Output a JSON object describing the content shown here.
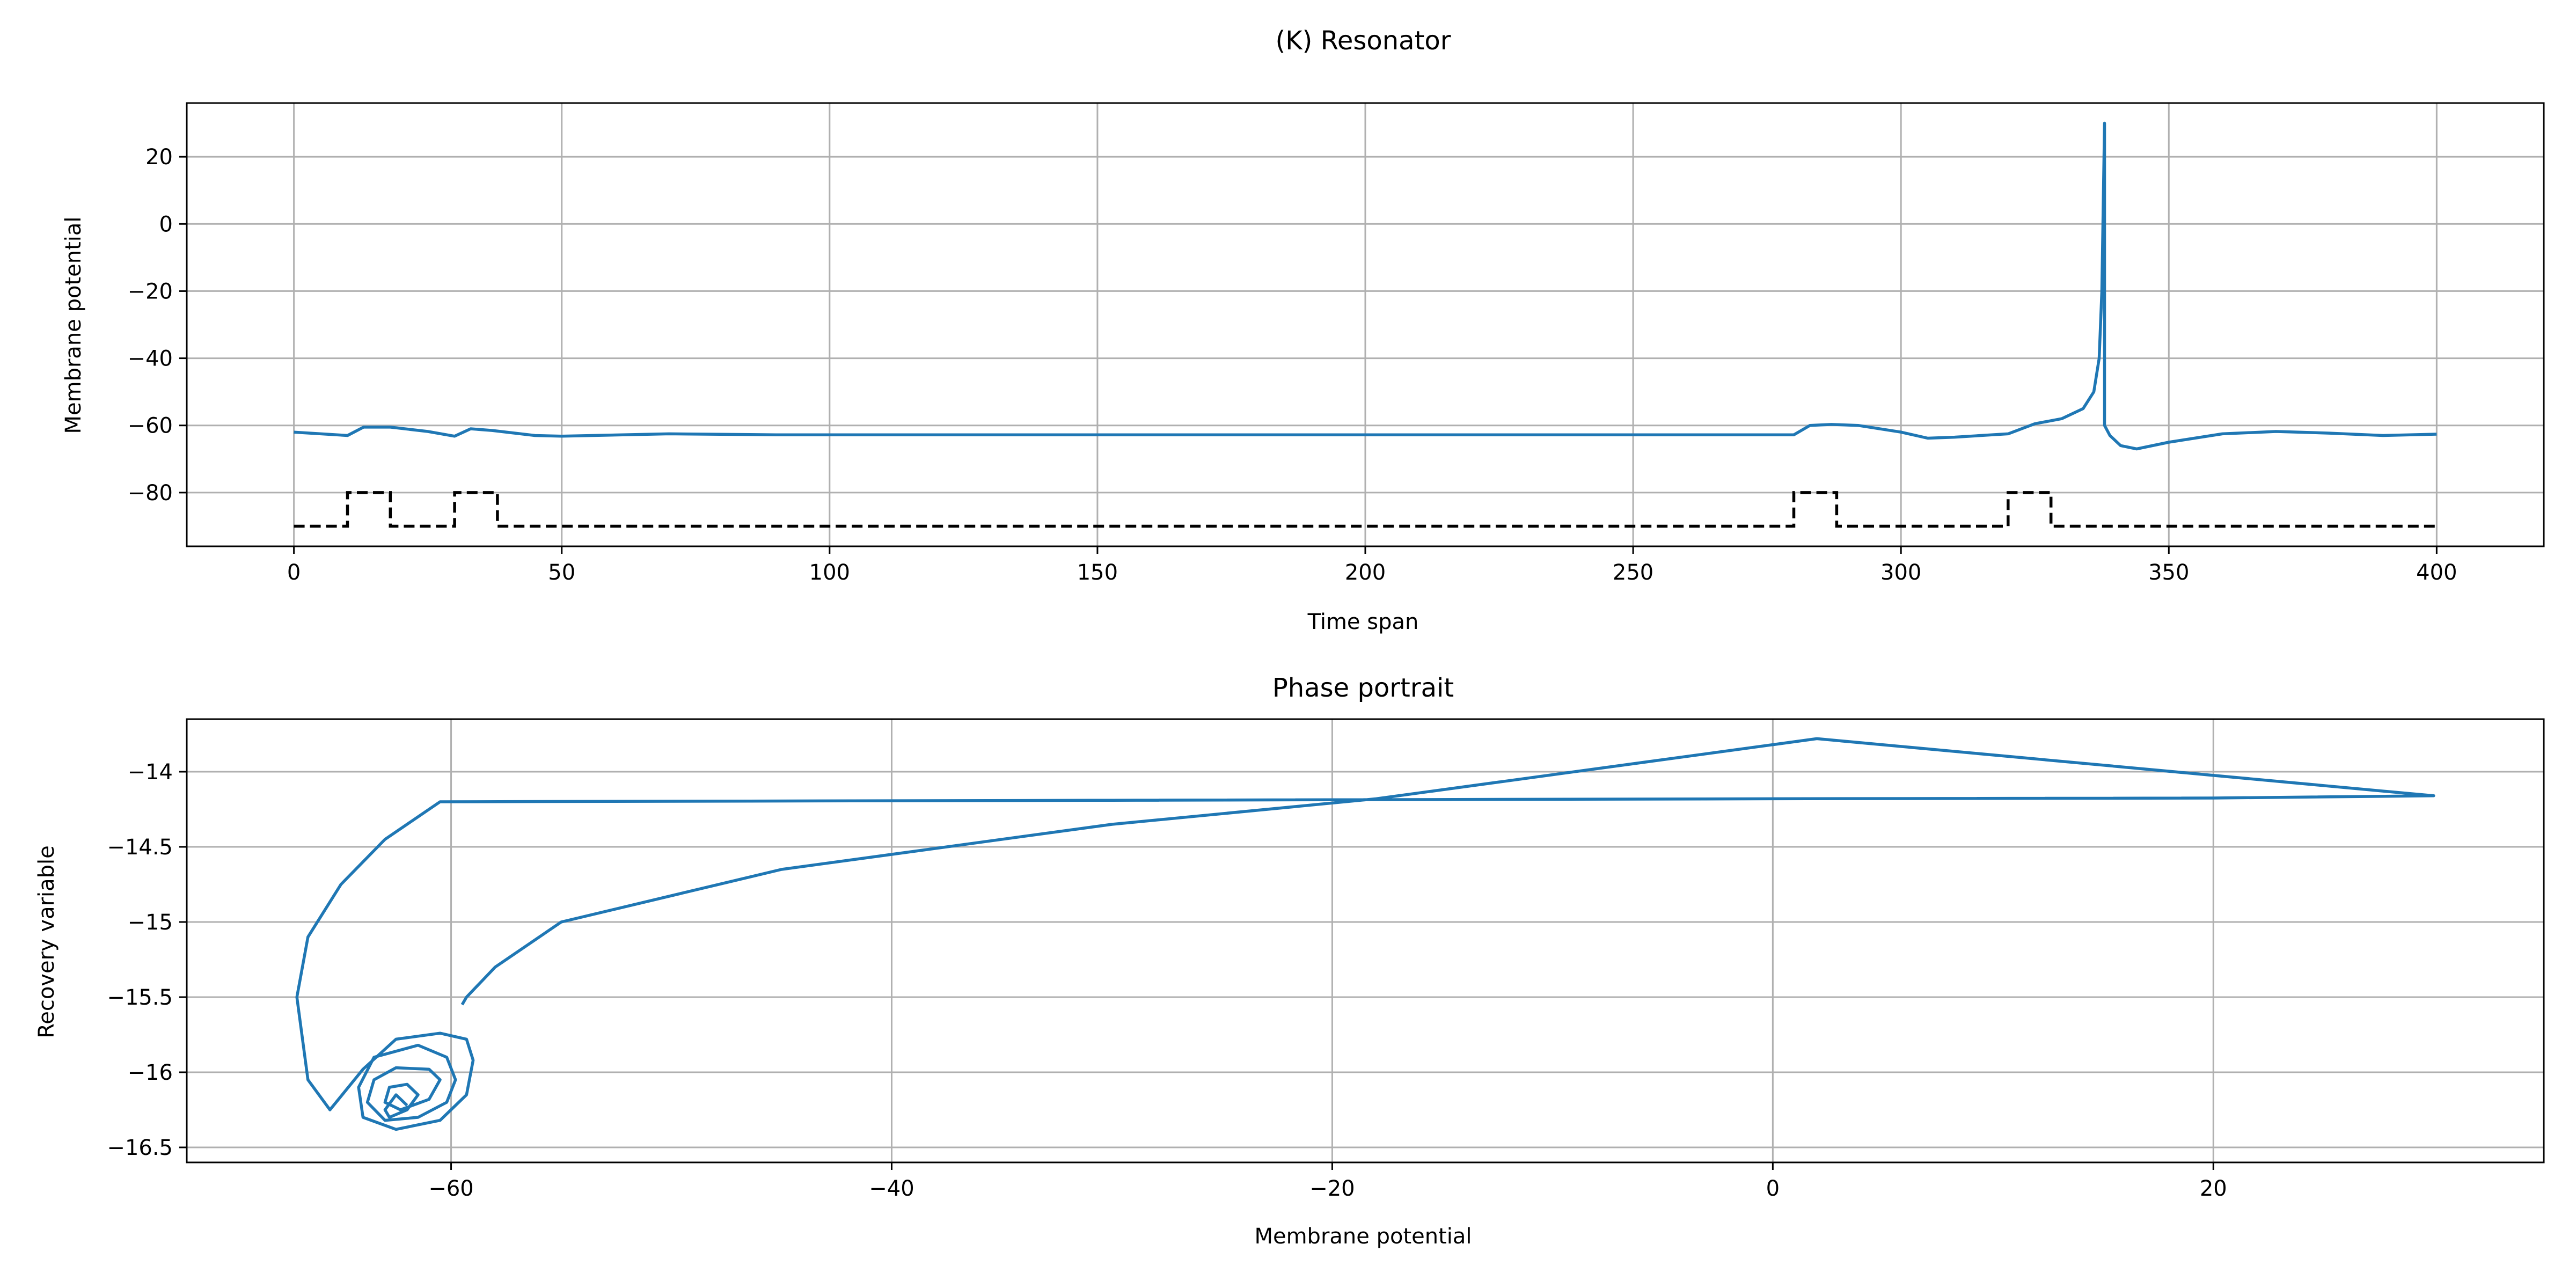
{
  "figure": {
    "suptitle": "(K) Resonator"
  },
  "colors": {
    "series": "#1f77b4",
    "stimulus": "#000000",
    "grid": "#b0b0b0"
  },
  "chart_data": [
    {
      "type": "line",
      "title": "",
      "xlabel": "Time span",
      "ylabel": "Membrane potential",
      "xlim": [
        -20,
        420
      ],
      "ylim": [
        -96,
        36
      ],
      "xticks": [
        0,
        50,
        100,
        150,
        200,
        250,
        300,
        350,
        400
      ],
      "yticks": [
        -80,
        -60,
        -40,
        -20,
        0,
        20
      ],
      "grid": true,
      "series": [
        {
          "style": "solid",
          "color": "#1f77b4",
          "x": [
            0,
            10,
            13,
            18,
            25,
            30,
            33,
            37,
            45,
            50,
            70,
            90,
            150,
            200,
            250,
            270,
            280,
            283,
            287,
            292,
            300,
            305,
            310,
            320,
            325,
            330,
            334,
            336,
            337,
            337.5,
            338,
            338,
            339,
            341,
            344,
            350,
            360,
            370,
            380,
            390,
            400
          ],
          "y": [
            -62,
            -63,
            -60.5,
            -60.5,
            -61.8,
            -63.2,
            -61,
            -61.5,
            -63,
            -63.2,
            -62.5,
            -62.8,
            -62.8,
            -62.8,
            -62.8,
            -62.8,
            -62.8,
            -60,
            -59.7,
            -60,
            -62,
            -63.8,
            -63.5,
            -62.5,
            -59.5,
            -58,
            -55,
            -50,
            -40,
            -20,
            30,
            -60,
            -63,
            -66,
            -67,
            -65,
            -62.5,
            -61.8,
            -62.3,
            -63.0,
            -62.6
          ]
        },
        {
          "style": "dashed",
          "color": "#000000",
          "x": [
            0,
            10,
            10,
            18,
            18,
            30,
            30,
            38,
            38,
            280,
            280,
            288,
            288,
            320,
            320,
            328,
            328,
            400
          ],
          "y": [
            -90,
            -90,
            -80,
            -80,
            -90,
            -90,
            -80,
            -80,
            -90,
            -90,
            -80,
            -80,
            -90,
            -90,
            -80,
            -80,
            -90,
            -90
          ]
        }
      ]
    },
    {
      "type": "line",
      "title": "Phase portrait",
      "xlabel": "Membrane potential",
      "ylabel": "Recovery variable",
      "xlim": [
        -72,
        35
      ],
      "ylim": [
        -16.6,
        -13.65
      ],
      "xticks": [
        -60,
        -40,
        -20,
        0,
        20
      ],
      "yticks": [
        -16.5,
        -16.0,
        -15.5,
        -15.0,
        -14.5,
        -14.0
      ],
      "grid": true,
      "series": [
        {
          "style": "solid",
          "color": "#1f77b4",
          "x": [
            -62,
            -62.5,
            -63,
            -62.8,
            -62.0,
            -61.5,
            -62.0,
            -62.8,
            -63.0,
            -62.3,
            -61.0,
            -60.5,
            -61.0,
            -62.5,
            -63.5,
            -63.8,
            -63.0,
            -61.5,
            -60.2,
            -59.8,
            -60.2,
            -61.5,
            -63.5,
            -64.2,
            -64.0,
            -62.5,
            -60.5,
            -59.3,
            -59.0,
            -59.3,
            -60.5,
            -62.5,
            -64.0,
            -65.5,
            -66.5,
            -67.0,
            -66.5,
            -65.0,
            -63.0,
            -60.5,
            -30,
            0,
            20,
            30,
            2,
            -18,
            -30,
            -45,
            -55,
            -58,
            -59.3,
            -59.5
          ],
          "y": [
            -16.22,
            -16.15,
            -16.25,
            -16.3,
            -16.25,
            -16.15,
            -16.08,
            -16.1,
            -16.2,
            -16.25,
            -16.18,
            -16.05,
            -15.98,
            -15.97,
            -16.05,
            -16.2,
            -16.32,
            -16.3,
            -16.2,
            -16.05,
            -15.9,
            -15.82,
            -15.9,
            -16.1,
            -16.3,
            -16.38,
            -16.32,
            -16.15,
            -15.92,
            -15.78,
            -15.74,
            -15.78,
            -15.98,
            -16.25,
            -16.05,
            -15.5,
            -15.1,
            -14.75,
            -14.45,
            -14.2,
            -14.19,
            -14.18,
            -14.175,
            -14.16,
            -13.78,
            -14.18,
            -14.35,
            -14.65,
            -15.0,
            -15.3,
            -15.5,
            -15.55
          ]
        }
      ]
    }
  ]
}
